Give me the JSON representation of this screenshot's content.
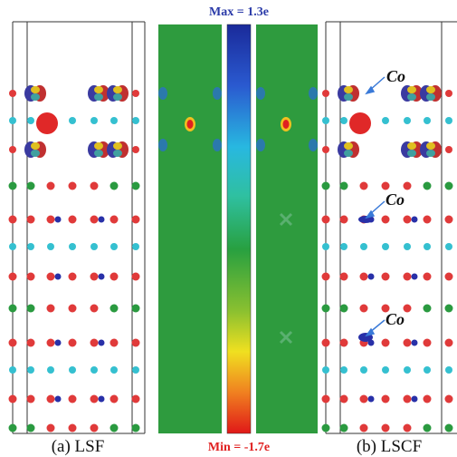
{
  "labels": {
    "max": "Max = 1.3e",
    "min": "Min = -1.7e"
  },
  "panels": [
    {
      "caption": "(a) LSF"
    },
    {
      "caption": "(b) LSCF",
      "annotations": [
        "Co",
        "Co",
        "Co"
      ]
    }
  ]
}
